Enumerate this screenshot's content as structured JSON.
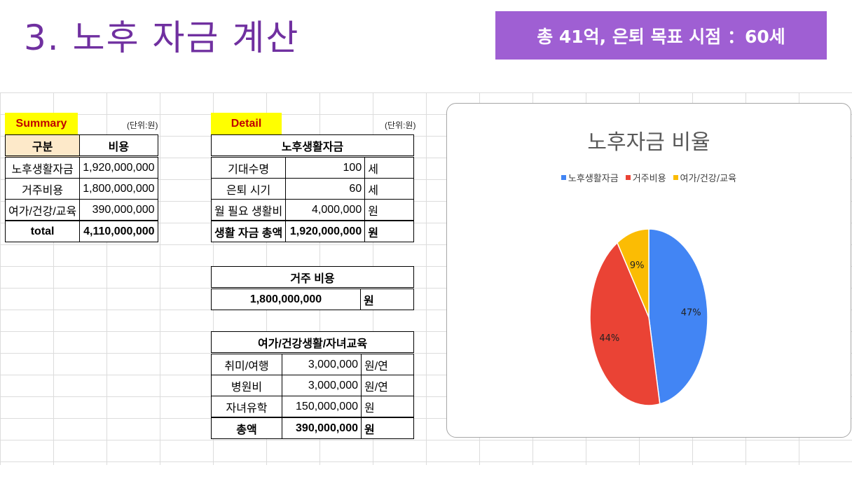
{
  "slide": {
    "title": "3. 노후 자금 계산",
    "banner": "총 41억, 은퇴 목표 시점 ：60세"
  },
  "colors": {
    "title": "#7030a0",
    "banner_bg": "#9f5fd3",
    "tag_bg": "#ffff00",
    "tag_text": "#c00000",
    "header_bg": "#fde9c9"
  },
  "summary": {
    "tag": "Summary",
    "unit": "(단위:원)",
    "headers": [
      "구분",
      "비용"
    ],
    "rows": [
      {
        "label": "노후생활자금",
        "value": "1,920,000,000"
      },
      {
        "label": "거주비용",
        "value": "1,800,000,000"
      },
      {
        "label": "여가/건강/교육",
        "value": "390,000,000"
      }
    ],
    "total_label": "total",
    "total_value": "4,110,000,000"
  },
  "detail": {
    "tag": "Detail",
    "unit": "(단위:원)",
    "living": {
      "title": "노후생활자금",
      "rows": [
        {
          "label": "기대수명",
          "value": "100",
          "unit": "세"
        },
        {
          "label": "은퇴 시기",
          "value": "60",
          "unit": "세"
        },
        {
          "label": "월 필요 생활비",
          "value": "4,000,000",
          "unit": "원"
        }
      ],
      "total": {
        "label": "생활 자금 총액",
        "value": "1,920,000,000",
        "unit": "원"
      }
    },
    "housing": {
      "title": "거주 비용",
      "value": "1,800,000,000",
      "unit": "원"
    },
    "leisure": {
      "title": "여가/건강생활/자녀교육",
      "rows": [
        {
          "label": "취미/여행",
          "value": "3,000,000",
          "unit": "원/연"
        },
        {
          "label": "병원비",
          "value": "3,000,000",
          "unit": "원/연"
        },
        {
          "label": "자녀유학",
          "value": "150,000,000",
          "unit": "원"
        }
      ],
      "total": {
        "label": "총액",
        "value": "390,000,000",
        "unit": "원"
      }
    }
  },
  "chart_data": {
    "type": "pie",
    "title": "노후자금 비율",
    "legend_position": "top",
    "categories": [
      "노후생활자금",
      "거주비용",
      "여가/건강/교육"
    ],
    "values": [
      47,
      44,
      9
    ],
    "labels": [
      "47%",
      "44%",
      "9%"
    ],
    "colors": [
      "#4285f4",
      "#ea4335",
      "#fbbc04"
    ]
  }
}
